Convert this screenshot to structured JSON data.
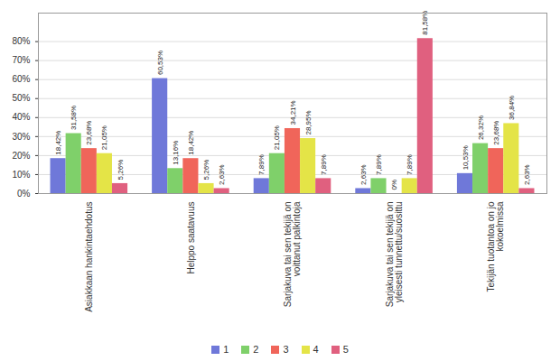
{
  "chart_data": {
    "type": "bar",
    "categories": [
      "Asiakkaan hankintaehdotus",
      "Helppo saatavuus",
      "Sarjakuva tai sen tekijä on voittanut palkintoja",
      "Sarjakuva tai sen tekijä on yleisesti tunnettu/suosittu",
      "Tekijän tuotantoa on jo kokoelmissa"
    ],
    "series": [
      {
        "name": "1",
        "color": "#6f78d9",
        "values": [
          18.42,
          60.53,
          7.89,
          2.63,
          10.53
        ],
        "value_labels": [
          "18,42%",
          "60,53%",
          "7,89%",
          "2,63%",
          "10,53%"
        ]
      },
      {
        "name": "2",
        "color": "#7fd06a",
        "values": [
          31.58,
          13.16,
          21.05,
          7.89,
          26.32
        ],
        "value_labels": [
          "31,58%",
          "13,16%",
          "21,05%",
          "7,89%",
          "26,32%"
        ]
      },
      {
        "name": "3",
        "color": "#f0655a",
        "values": [
          23.68,
          18.42,
          34.21,
          0,
          23.68
        ],
        "value_labels": [
          "23,68%",
          "18,42%",
          "34,21%",
          "0%",
          "23,68%"
        ]
      },
      {
        "name": "4",
        "color": "#e4e447",
        "values": [
          21.05,
          5.26,
          28.95,
          7.89,
          36.84
        ],
        "value_labels": [
          "21,05%",
          "5,26%",
          "28,95%",
          "7,89%",
          "36,84%"
        ]
      },
      {
        "name": "5",
        "color": "#e0607f",
        "values": [
          5.26,
          2.63,
          7.89,
          81.58,
          2.63
        ],
        "value_labels": [
          "5,26%",
          "2,63%",
          "7,89%",
          "81,58%",
          "2,63%"
        ]
      }
    ],
    "ylim": [
      0,
      95
    ],
    "yticks": [
      {
        "value": 0,
        "label": "0%"
      },
      {
        "value": 10,
        "label": "10%"
      },
      {
        "value": 20,
        "label": "20%"
      },
      {
        "value": 30,
        "label": "30%"
      },
      {
        "value": 40,
        "label": "40%"
      },
      {
        "value": 50,
        "label": "50%"
      },
      {
        "value": 60,
        "label": "60%"
      },
      {
        "value": 70,
        "label": "70%"
      },
      {
        "value": 80,
        "label": "80%"
      }
    ],
    "grid": true,
    "legend": "bottom",
    "data_labels": true
  }
}
